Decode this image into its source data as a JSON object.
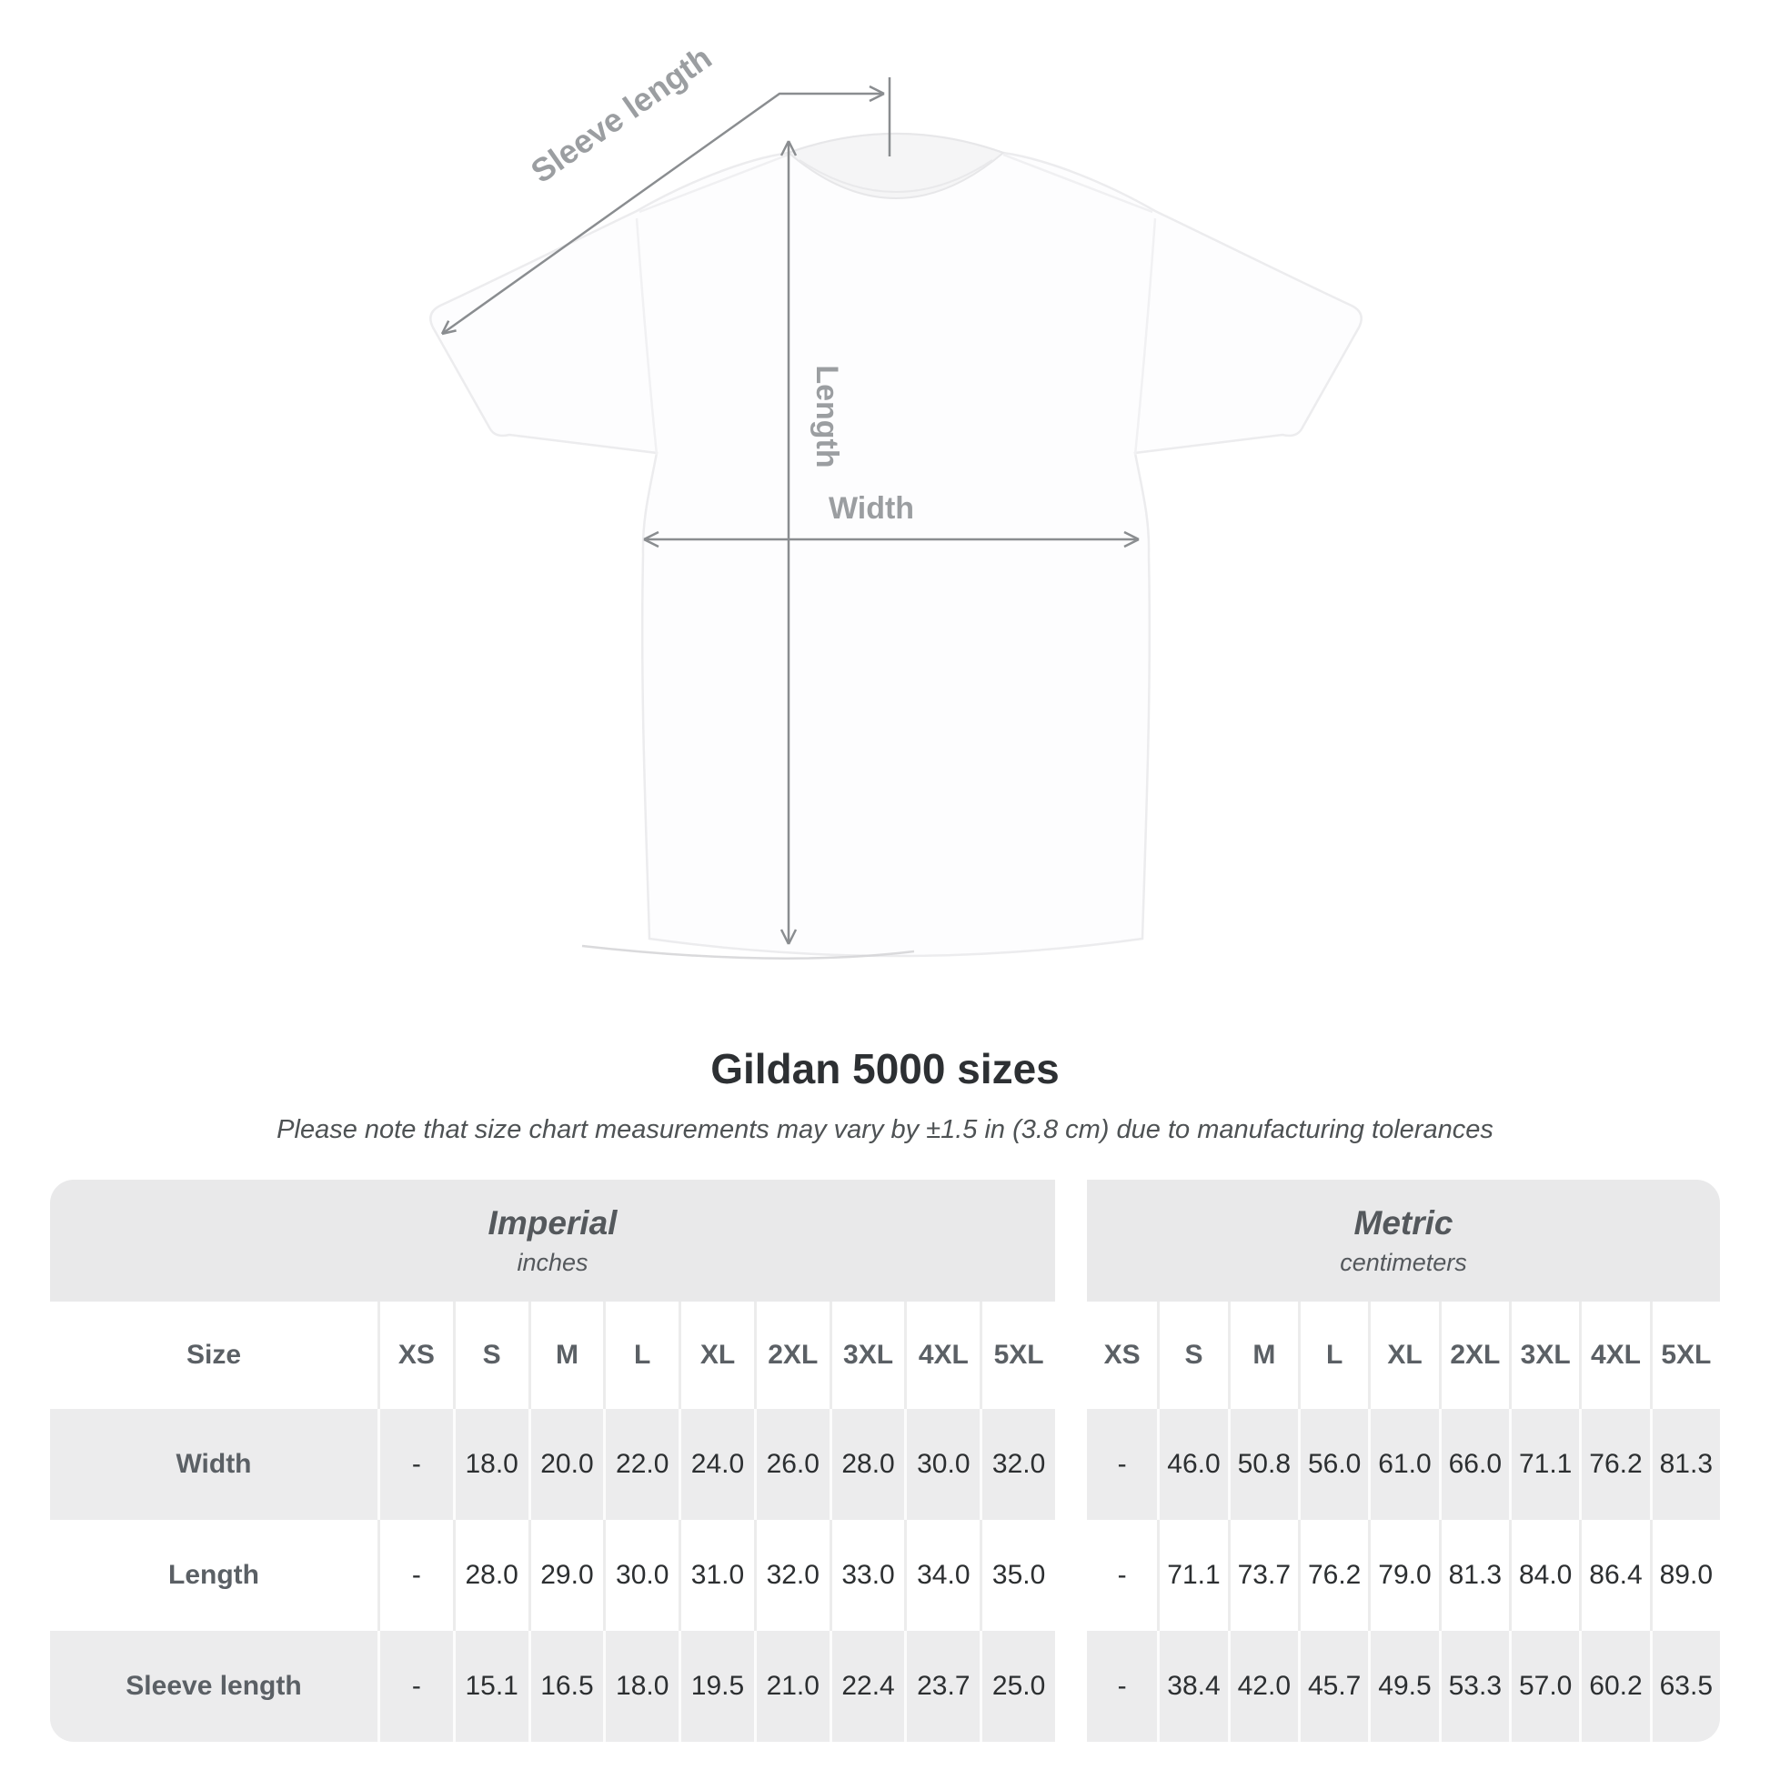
{
  "diagram": {
    "sleeve_length_label": "Sleeve length",
    "length_label": "Length",
    "width_label": "Width"
  },
  "heading": {
    "title": "Gildan 5000 sizes",
    "subtitle": "Please note that size chart measurements may vary by ±1.5 in (3.8 cm) due to manufacturing tolerances"
  },
  "table": {
    "size_header": "Size",
    "sizes": [
      "XS",
      "S",
      "M",
      "L",
      "XL",
      "2XL",
      "3XL",
      "4XL",
      "5XL"
    ],
    "groups": [
      {
        "name": "Imperial",
        "unit": "inches"
      },
      {
        "name": "Metric",
        "unit": "centimeters"
      }
    ],
    "rows": [
      {
        "label": "Width",
        "imperial": [
          "-",
          "18.0",
          "20.0",
          "22.0",
          "24.0",
          "26.0",
          "28.0",
          "30.0",
          "32.0"
        ],
        "metric": [
          "-",
          "46.0",
          "50.8",
          "56.0",
          "61.0",
          "66.0",
          "71.1",
          "76.2",
          "81.3"
        ]
      },
      {
        "label": "Length",
        "imperial": [
          "-",
          "28.0",
          "29.0",
          "30.0",
          "31.0",
          "32.0",
          "33.0",
          "34.0",
          "35.0"
        ],
        "metric": [
          "-",
          "71.1",
          "73.7",
          "76.2",
          "79.0",
          "81.3",
          "84.0",
          "86.4",
          "89.0"
        ]
      },
      {
        "label": "Sleeve length",
        "imperial": [
          "-",
          "15.1",
          "16.5",
          "18.0",
          "19.5",
          "21.0",
          "22.4",
          "23.7",
          "25.0"
        ],
        "metric": [
          "-",
          "38.4",
          "42.0",
          "45.7",
          "49.5",
          "53.3",
          "57.0",
          "60.2",
          "63.5"
        ]
      }
    ]
  },
  "colors": {
    "annotation_line": "#8a8d90",
    "annotation_label": "#9b9ea1",
    "group_header_bg": "#e9e9ea",
    "stripe_row_bg": "#ececed",
    "header_text": "#5b6065",
    "value_text": "#2c2f31"
  }
}
